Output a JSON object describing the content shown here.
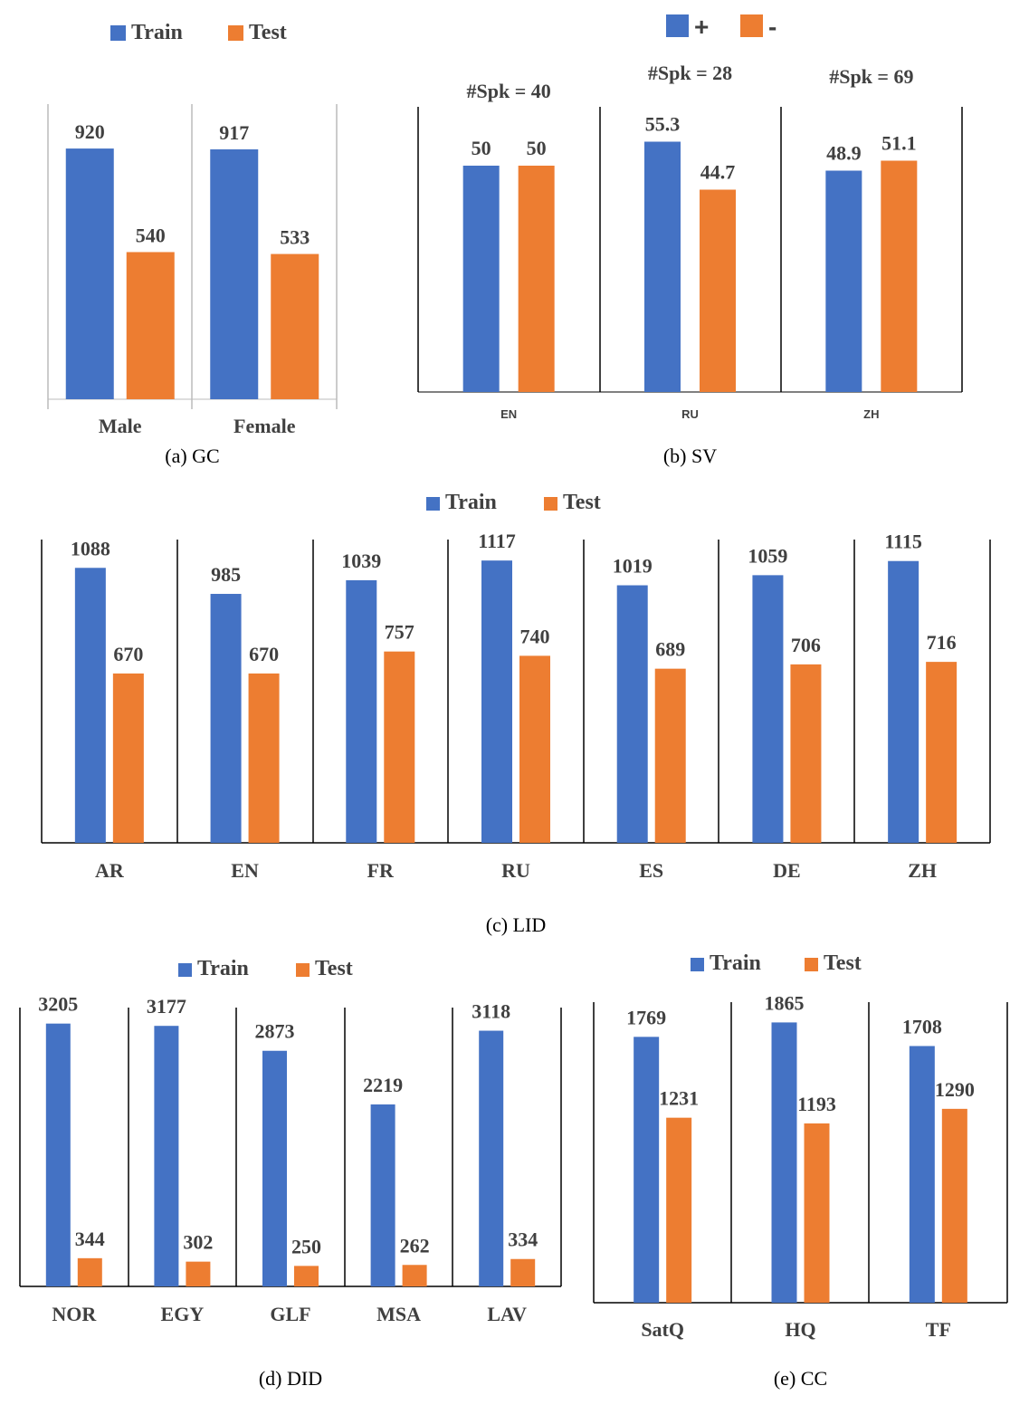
{
  "colors": {
    "train": "#4472C4",
    "test": "#ED7D31"
  },
  "chart_data": [
    {
      "type": "bar",
      "caption": "(a) GC",
      "legend": [
        "Train",
        "Test"
      ],
      "categories": [
        "Male",
        "Female"
      ],
      "series": [
        {
          "name": "Train",
          "values": [
            920,
            917
          ]
        },
        {
          "name": "Test",
          "values": [
            540,
            533
          ]
        }
      ],
      "ylim": [
        0,
        1000
      ]
    },
    {
      "type": "bar",
      "caption": "(b) SV",
      "legend": [
        "+",
        "-"
      ],
      "categories": [
        "EN",
        "RU",
        "ZH"
      ],
      "annotations": [
        "#Spk = 40",
        "#Spk = 28",
        "#Spk = 69"
      ],
      "series": [
        {
          "name": "+",
          "values": [
            50,
            55.3,
            48.9
          ]
        },
        {
          "name": "-",
          "values": [
            50,
            44.7,
            51.1
          ]
        }
      ],
      "ylim": [
        0,
        60
      ]
    },
    {
      "type": "bar",
      "caption": "(c) LID",
      "legend": [
        "Train",
        "Test"
      ],
      "categories": [
        "AR",
        "EN",
        "FR",
        "RU",
        "ES",
        "DE",
        "ZH"
      ],
      "series": [
        {
          "name": "Train",
          "values": [
            1088,
            985,
            1039,
            1117,
            1019,
            1059,
            1115
          ]
        },
        {
          "name": "Test",
          "values": [
            670,
            670,
            757,
            740,
            689,
            706,
            716
          ]
        }
      ],
      "ylim": [
        0,
        1200
      ]
    },
    {
      "type": "bar",
      "caption": "(d) DID",
      "legend": [
        "Train",
        "Test"
      ],
      "categories": [
        "NOR",
        "EGY",
        "GLF",
        "MSA",
        "LAV"
      ],
      "series": [
        {
          "name": "Train",
          "values": [
            3205,
            3177,
            2873,
            2219,
            3118
          ]
        },
        {
          "name": "Test",
          "values": [
            344,
            302,
            250,
            262,
            334
          ]
        }
      ],
      "ylim": [
        0,
        3400
      ]
    },
    {
      "type": "bar",
      "caption": "(e) CC",
      "legend": [
        "Train",
        "Test"
      ],
      "categories": [
        "SatQ",
        "HQ",
        "TF"
      ],
      "series": [
        {
          "name": "Train",
          "values": [
            1769,
            1865,
            1708
          ]
        },
        {
          "name": "Test",
          "values": [
            1231,
            1193,
            1290
          ]
        }
      ],
      "ylim": [
        0,
        2000
      ]
    }
  ]
}
